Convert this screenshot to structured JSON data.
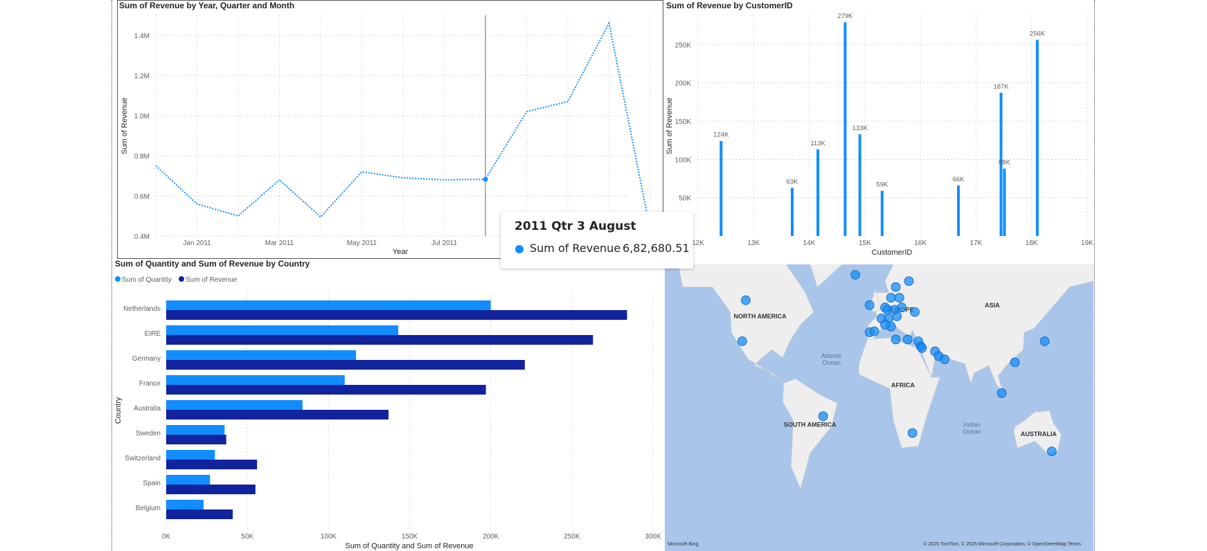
{
  "line_panel": {
    "title": "Sum of Revenue by Year, Quarter and Month"
  },
  "col_panel": {
    "title": "Sum of Revenue by CustomerID"
  },
  "bar_panel": {
    "title": "Sum of Quantity and Sum of Revenue by Country"
  },
  "colors": {
    "primary": "#118dff",
    "secondary": "#12239e",
    "grid": "#c8c6c4",
    "land": "#eeeeee",
    "water": "#a9c6ea"
  },
  "tooltip": {
    "title": "2011 Qtr 3 August",
    "label": "Sum of Revenue",
    "value": "6,82,680.51"
  },
  "chart_data": [
    {
      "type": "line",
      "title": "Sum of Revenue by Year, Quarter and Month",
      "xlabel": "Year",
      "ylabel": "Sum of Revenue",
      "x_ticks": [
        "Jan 2011",
        "Mar 2011",
        "May 2011",
        "Jul 2011"
      ],
      "x": [
        "Dec 2010",
        "Jan 2011",
        "Feb 2011",
        "Mar 2011",
        "Apr 2011",
        "May 2011",
        "Jun 2011",
        "Jul 2011",
        "Aug 2011",
        "Sep 2011",
        "Oct 2011",
        "Nov 2011",
        "Dec 2011"
      ],
      "values": [
        750000,
        560000,
        500000,
        680000,
        495000,
        720000,
        690000,
        680000,
        682680.51,
        1020000,
        1070000,
        1460000,
        430000
      ],
      "ylim": [
        400000,
        1500000
      ],
      "y_ticks": [
        400000,
        600000,
        800000,
        1000000,
        1200000,
        1400000
      ],
      "y_tick_labels": [
        "0.4M",
        "0.6M",
        "0.8M",
        "1.0M",
        "1.2M",
        "1.4M"
      ],
      "highlight": {
        "x": "Aug 2011",
        "value": 682680.51
      },
      "grid": true
    },
    {
      "type": "bar",
      "title": "Sum of Revenue by CustomerID",
      "xlabel": "CustomerID",
      "ylabel": "Sum of Revenue",
      "x": [
        12415,
        13694,
        14156,
        14646,
        14911,
        15311,
        16684,
        17450,
        17511,
        18102
      ],
      "values": [
        124000,
        63000,
        113000,
        279000,
        133000,
        59000,
        66000,
        187000,
        88000,
        256000
      ],
      "data_labels": [
        "124K",
        "63K",
        "113K",
        "279K",
        "133K",
        "59K",
        "66K",
        "187K",
        "88K",
        "256K"
      ],
      "xlim": [
        12000,
        19000
      ],
      "x_tick_labels": [
        "12K",
        "13K",
        "14K",
        "15K",
        "16K",
        "17K",
        "18K",
        "19K"
      ],
      "ylim": [
        0,
        290000
      ],
      "y_ticks": [
        50000,
        100000,
        150000,
        200000,
        250000
      ],
      "y_tick_labels": [
        "50K",
        "100K",
        "150K",
        "200K",
        "250K"
      ],
      "grid": true
    },
    {
      "type": "bar",
      "orientation": "horizontal",
      "title": "Sum of Quantity and Sum of Revenue by Country",
      "xlabel": "Sum of Quantity and Sum of Revenue",
      "ylabel": "Country",
      "categories": [
        "Netherlands",
        "EIRE",
        "Germany",
        "France",
        "Australia",
        "Sweden",
        "Switzerland",
        "Spain",
        "Belgium"
      ],
      "series": [
        {
          "name": "Sum of Quantity",
          "values": [
            200000,
            143000,
            117000,
            110000,
            84000,
            36000,
            30000,
            27000,
            23000
          ]
        },
        {
          "name": "Sum of Revenue",
          "values": [
            284000,
            263000,
            221000,
            197000,
            137000,
            37000,
            56000,
            55000,
            41000
          ]
        }
      ],
      "xlim": [
        0,
        300000
      ],
      "x_ticks": [
        0,
        50000,
        100000,
        150000,
        200000,
        250000,
        300000
      ],
      "x_tick_labels": [
        "0K",
        "50K",
        "100K",
        "150K",
        "200K",
        "250K",
        "300K"
      ],
      "legend": "top-left",
      "grid": true
    }
  ],
  "map": {
    "labels": [
      {
        "text": "NORTH AMERICA",
        "lon": -100,
        "lat": 47
      },
      {
        "text": "EUROPE",
        "lon": 18,
        "lat": 50
      },
      {
        "text": "ASIA",
        "lon": 95,
        "lat": 52
      },
      {
        "text": "AFRICA",
        "lon": 20,
        "lat": 5
      },
      {
        "text": "SOUTH AMERICA",
        "lon": -58,
        "lat": -22
      },
      {
        "text": "AUSTRALIA",
        "lon": 134,
        "lat": -28
      }
    ],
    "ocean_labels": [
      {
        "text": "Atlantic",
        "text2": "Ocean",
        "lon": -40,
        "lat": 25
      },
      {
        "text": "Indian",
        "text2": "Ocean",
        "lon": 78,
        "lat": -22
      }
    ],
    "points": [
      {
        "lon": -112,
        "lat": 55
      },
      {
        "lon": -115,
        "lat": 35
      },
      {
        "lon": -20,
        "lat": 64
      },
      {
        "lon": -8,
        "lat": 53
      },
      {
        "lon": -8,
        "lat": 40
      },
      {
        "lon": -4,
        "lat": 40.5
      },
      {
        "lon": 2,
        "lat": 47
      },
      {
        "lon": 5,
        "lat": 52
      },
      {
        "lon": 7,
        "lat": 51
      },
      {
        "lon": 10,
        "lat": 56
      },
      {
        "lon": 14,
        "lat": 60
      },
      {
        "lon": 25,
        "lat": 62
      },
      {
        "lon": 19,
        "lat": 52
      },
      {
        "lon": 13,
        "lat": 51
      },
      {
        "lon": 8,
        "lat": 47
      },
      {
        "lon": 10,
        "lat": 43
      },
      {
        "lon": 15,
        "lat": 48
      },
      {
        "lon": 17,
        "lat": 56
      },
      {
        "lon": 24,
        "lat": 36
      },
      {
        "lon": 33,
        "lat": 35
      },
      {
        "lon": 35,
        "lat": 32
      },
      {
        "lon": 36,
        "lat": 31
      },
      {
        "lon": 47,
        "lat": 29
      },
      {
        "lon": 50,
        "lat": 26
      },
      {
        "lon": 55,
        "lat": 24
      },
      {
        "lon": 14,
        "lat": 36
      },
      {
        "lon": 5,
        "lat": 44
      },
      {
        "lon": 103,
        "lat": 1
      },
      {
        "lon": 114,
        "lat": 22
      },
      {
        "lon": 139,
        "lat": 35
      },
      {
        "lon": -47,
        "lat": -15
      },
      {
        "lon": 28,
        "lat": -26
      },
      {
        "lon": 145,
        "lat": -37
      },
      {
        "lon": 30,
        "lat": 50
      }
    ],
    "attribution": "© 2025 TomTom, © 2025 Microsoft Corporation, © OpenStreetMap  Terms",
    "logo": "Microsoft Bing"
  }
}
